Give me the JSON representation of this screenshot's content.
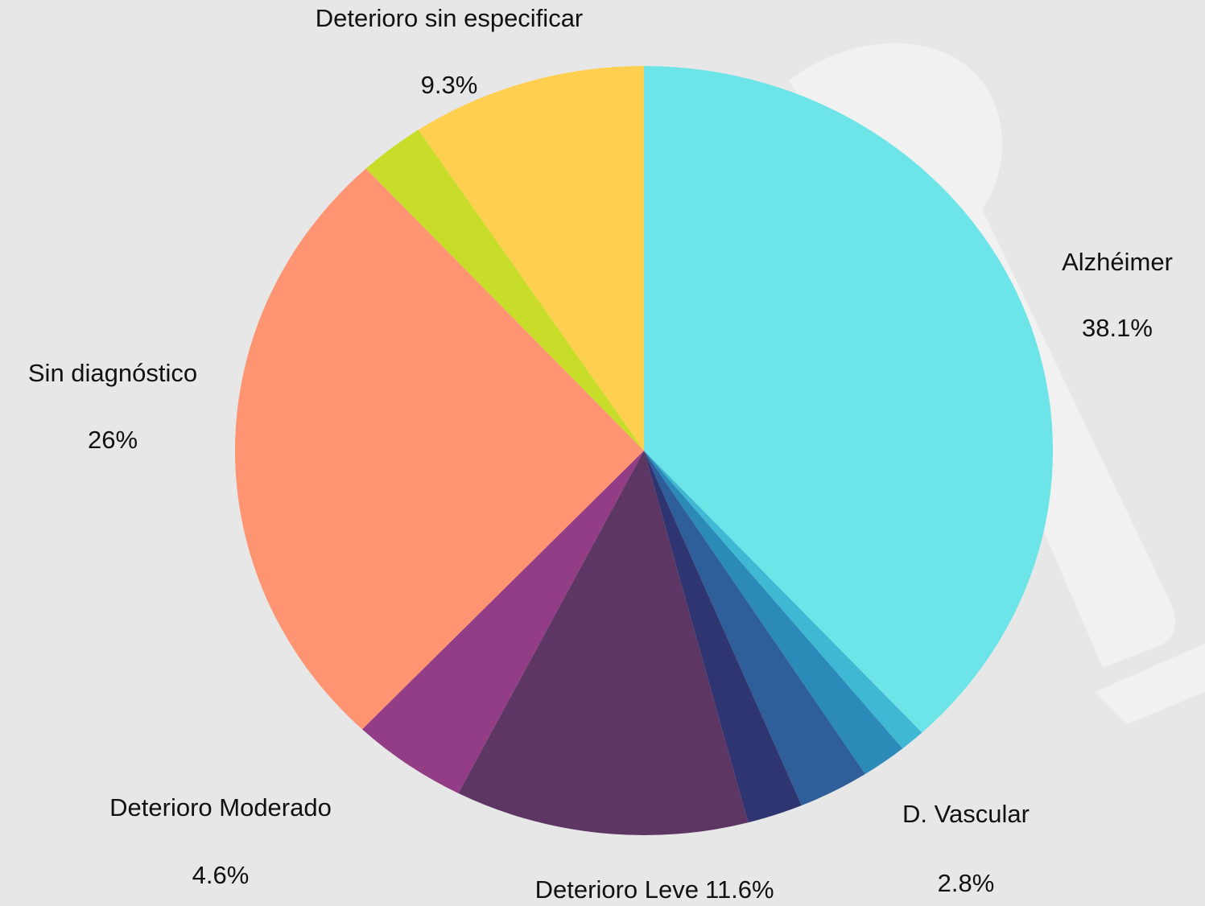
{
  "chart_data": {
    "type": "pie",
    "categories": [
      "Alzhéimer",
      null,
      null,
      "D. Vascular",
      null,
      "Deterioro Leve",
      "Deterioro Moderado",
      "Sin diagnóstico",
      null,
      "Deterioro sin especificar"
    ],
    "values": [
      38.1,
      1.0,
      1.8,
      2.8,
      2.2,
      11.6,
      4.6,
      26,
      2.6,
      9.3
    ],
    "value_labels": [
      "38.1%",
      null,
      null,
      "2.8%",
      null,
      "11.6%",
      "4.6%",
      "26%",
      null,
      "9.3%"
    ],
    "colors": [
      "#6ce4e8",
      "#3fb8d4",
      "#2b8ab8",
      "#2e5f9a",
      "#2f3570",
      "#5e3664",
      "#923d86",
      "#ff9473",
      "#c8dd2a",
      "#ffcf4f"
    ]
  }
}
